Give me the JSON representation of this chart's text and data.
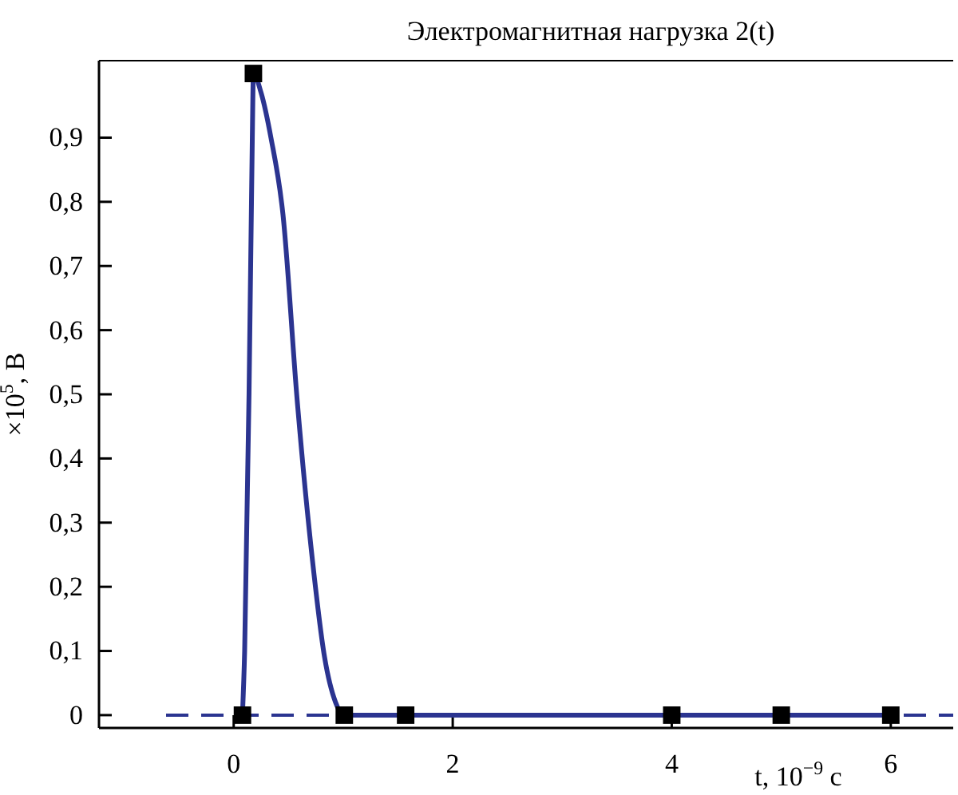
{
  "chart_data": {
    "type": "line",
    "title": "Электромагнитная нагрузка 2(t)",
    "xlabel": "t, 10$^{−9}$ с",
    "ylabel": "×10$^{5}$, В",
    "xlim": [
      -1.23,
      6.57
    ],
    "xticks": [
      0,
      2,
      4,
      6
    ],
    "ylim": [
      -0.02,
      1.02
    ],
    "yticks": [
      0,
      {
        "value": 0.1,
        "label": "0,1"
      },
      {
        "value": 0.2,
        "label": "0,2"
      },
      {
        "value": 0.3,
        "label": "0,3"
      },
      {
        "value": 0.4,
        "label": "0,4"
      },
      {
        "value": 0.5,
        "label": "0,5"
      },
      {
        "value": 0.6,
        "label": "0,6"
      },
      {
        "value": 0.7,
        "label": "0,7"
      },
      {
        "value": 0.8,
        "label": "0,8"
      },
      {
        "value": 0.9,
        "label": "0,9"
      }
    ],
    "grid": false,
    "series": [
      {
        "color": "#2b3490",
        "marker": "none",
        "line_style": "solid",
        "x": [
          0.08,
          0.1,
          0.14,
          0.17,
          0.18,
          0.25,
          0.34,
          0.45,
          0.58,
          0.72,
          0.83,
          0.93,
          1.01,
          6
        ],
        "values": [
          0,
          0.1,
          0.5,
          0.9,
          1.0,
          0.97,
          0.9,
          0.78,
          0.49,
          0.24,
          0.09,
          0.02,
          0,
          0
        ]
      },
      {
        "type": "scatter",
        "color": "#000000",
        "marker": "square",
        "x": [
          0.08,
          0.18,
          1.01,
          1.57,
          4,
          5,
          6
        ],
        "values": [
          0,
          1.0,
          0,
          0,
          0,
          0,
          0
        ]
      }
    ],
    "ref_lines": [
      {
        "axis": "y",
        "value": 0,
        "color": "#2b3490",
        "line_style": "dashed"
      }
    ]
  }
}
